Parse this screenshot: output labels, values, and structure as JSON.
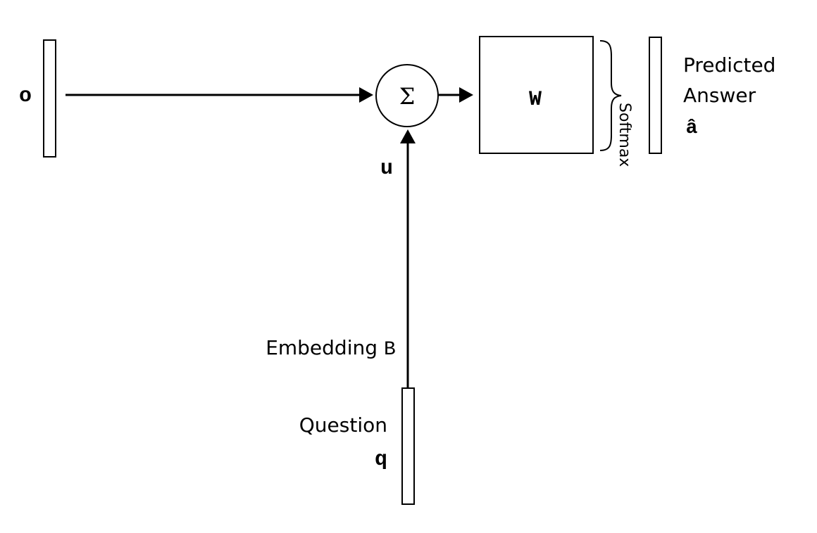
{
  "diagram": {
    "output_vector_label": "o",
    "sum_symbol": "Σ",
    "weight_matrix_label": "W",
    "softmax_label": "Softmax",
    "predicted_answer": {
      "line1": "Predicted",
      "line2": "Answer",
      "symbol": "â"
    },
    "u_label": "u",
    "embedding_label": "Embedding",
    "embedding_symbol": "B",
    "question_label": "Question",
    "question_symbol": "q"
  },
  "colors": {
    "stroke": "#000000",
    "background": "#ffffff"
  }
}
